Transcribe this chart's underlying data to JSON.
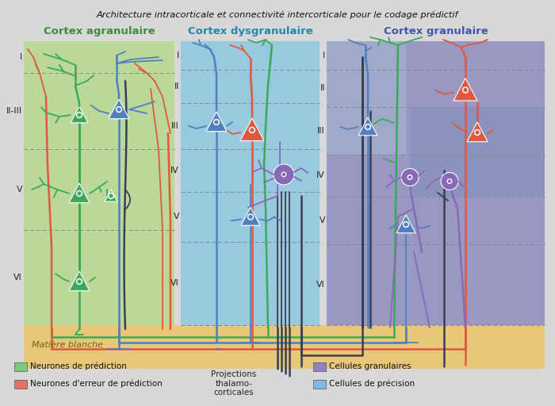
{
  "title": "Architecture intracorticale et connectivité intercorticale pour le codage prédictif",
  "col_titles": [
    "Cortex agranulaire",
    "Cortex dysgranulaire",
    "Cortex granulaire"
  ],
  "col_title_colors": [
    "#3d8b3d",
    "#2288aa",
    "#4455aa"
  ],
  "bg_color": "#d8d8d8",
  "col1_bg": "#b8d890",
  "col2_bg": "#90c8e0",
  "col3_bg": "#9090c0",
  "col3_lighter": "#a8b8d0",
  "white_matter_bg": "#e8c878",
  "white_matter_label": "Matière blanche",
  "green_c": "#3aaa5a",
  "red_c": "#e05840",
  "blue_c": "#5080c0",
  "purple_c": "#8868b8",
  "dark_c": "#384050",
  "salmon_c": "#e09080",
  "lw_thick": 2.2,
  "lw_med": 1.8,
  "lw_thin": 1.3,
  "neuron_size": 13,
  "dot_r": 3.5
}
